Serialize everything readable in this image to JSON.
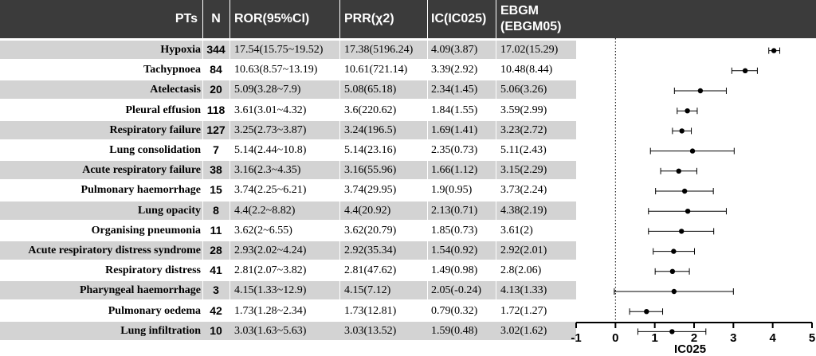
{
  "headers": {
    "pts": "PTs",
    "n": "N",
    "ror": "ROR(95%CI)",
    "prr": "PRR(χ2)",
    "ic": "IC(IC025)",
    "ebgm_line1": "EBGM",
    "ebgm_line2": "(EBGM05)"
  },
  "rows": [
    {
      "pt": "Hypoxia",
      "n": "344",
      "ror": "17.54(15.75~19.52)",
      "prr": "17.38(5196.24)",
      "ic": "4.09(3.87)",
      "ebgm": "17.02(15.29)"
    },
    {
      "pt": "Tachypnoea",
      "n": "84",
      "ror": "10.63(8.57~13.19)",
      "prr": "10.61(721.14)",
      "ic": "3.39(2.92)",
      "ebgm": "10.48(8.44)"
    },
    {
      "pt": "Atelectasis",
      "n": "20",
      "ror": "5.09(3.28~7.9)",
      "prr": "5.08(65.18)",
      "ic": "2.34(1.45)",
      "ebgm": "5.06(3.26)"
    },
    {
      "pt": "Pleural effusion",
      "n": "118",
      "ror": "3.61(3.01~4.32)",
      "prr": "3.6(220.62)",
      "ic": "1.84(1.55)",
      "ebgm": "3.59(2.99)"
    },
    {
      "pt": "Respiratory failure",
      "n": "127",
      "ror": "3.25(2.73~3.87)",
      "prr": "3.24(196.5)",
      "ic": "1.69(1.41)",
      "ebgm": "3.23(2.72)"
    },
    {
      "pt": "Lung consolidation",
      "n": "7",
      "ror": "5.14(2.44~10.8)",
      "prr": "5.14(23.16)",
      "ic": "2.35(0.73)",
      "ebgm": "5.11(2.43)"
    },
    {
      "pt": "Acute respiratory failure",
      "n": "38",
      "ror": "3.16(2.3~4.35)",
      "prr": "3.16(55.96)",
      "ic": "1.66(1.12)",
      "ebgm": "3.15(2.29)"
    },
    {
      "pt": "Pulmonary haemorrhage",
      "n": "15",
      "ror": "3.74(2.25~6.21)",
      "prr": "3.74(29.95)",
      "ic": "1.9(0.95)",
      "ebgm": "3.73(2.24)"
    },
    {
      "pt": "Lung opacity",
      "n": "8",
      "ror": "4.4(2.2~8.82)",
      "prr": "4.4(20.92)",
      "ic": "2.13(0.71)",
      "ebgm": "4.38(2.19)"
    },
    {
      "pt": "Organising pneumonia",
      "n": "11",
      "ror": "3.62(2~6.55)",
      "prr": "3.62(20.79)",
      "ic": "1.85(0.73)",
      "ebgm": "3.61(2)"
    },
    {
      "pt": "Acute respiratory distress syndrome",
      "n": "28",
      "ror": "2.93(2.02~4.24)",
      "prr": "2.92(35.34)",
      "ic": "1.54(0.92)",
      "ebgm": "2.92(2.01)"
    },
    {
      "pt": "Respiratory distress",
      "n": "41",
      "ror": "2.81(2.07~3.82)",
      "prr": "2.81(47.62)",
      "ic": "1.49(0.98)",
      "ebgm": "2.8(2.06)"
    },
    {
      "pt": "Pharyngeal haemorrhage",
      "n": "3",
      "ror": "4.15(1.33~12.9)",
      "prr": "4.15(7.12)",
      "ic": "2.05(-0.24)",
      "ebgm": "4.13(1.33)"
    },
    {
      "pt": "Pulmonary oedema",
      "n": "42",
      "ror": "1.73(1.28~2.34)",
      "prr": "1.73(12.81)",
      "ic": "0.79(0.32)",
      "ebgm": "1.72(1.27)"
    },
    {
      "pt": "Lung infiltration",
      "n": "10",
      "ror": "3.03(1.63~5.63)",
      "prr": "3.03(13.52)",
      "ic": "1.59(0.48)",
      "ebgm": "3.02(1.62)"
    }
  ],
  "chart_data": {
    "type": "scatter",
    "xlabel": "IC025",
    "xlim": [
      -1,
      5
    ],
    "xticks": [
      "-1",
      "0",
      "1",
      "2",
      "3",
      "4",
      "5"
    ],
    "reference_line": 0,
    "categories": [
      "Hypoxia",
      "Tachypnoea",
      "Atelectasis",
      "Pleural effusion",
      "Respiratory failure",
      "Lung consolidation",
      "Acute respiratory failure",
      "Pulmonary haemorrhage",
      "Lung opacity",
      "Organising pneumonia",
      "Acute respiratory distress syndrome",
      "Respiratory distress",
      "Pharyngeal haemorrhage",
      "Pulmonary oedema",
      "Lung infiltration"
    ],
    "points": [
      {
        "value": 4.03,
        "lower": 3.9,
        "upper": 4.18
      },
      {
        "value": 3.3,
        "lower": 2.96,
        "upper": 3.61
      },
      {
        "value": 2.16,
        "lower": 1.5,
        "upper": 2.82
      },
      {
        "value": 1.83,
        "lower": 1.57,
        "upper": 2.08
      },
      {
        "value": 1.69,
        "lower": 1.45,
        "upper": 1.93
      },
      {
        "value": 1.96,
        "lower": 0.89,
        "upper": 3.02
      },
      {
        "value": 1.61,
        "lower": 1.15,
        "upper": 2.07
      },
      {
        "value": 1.76,
        "lower": 1.02,
        "upper": 2.49
      },
      {
        "value": 1.84,
        "lower": 0.84,
        "upper": 2.82
      },
      {
        "value": 1.68,
        "lower": 0.84,
        "upper": 2.5
      },
      {
        "value": 1.48,
        "lower": 0.96,
        "upper": 2.01
      },
      {
        "value": 1.45,
        "lower": 1.01,
        "upper": 1.88
      },
      {
        "value": 1.49,
        "lower": -0.03,
        "upper": 3.0
      },
      {
        "value": 0.79,
        "lower": 0.36,
        "upper": 1.2
      },
      {
        "value": 1.44,
        "lower": 0.57,
        "upper": 2.3
      }
    ],
    "colors": {
      "header": "#3b3b3b",
      "shade": "#d3d3d3",
      "marker": "#000000"
    }
  }
}
